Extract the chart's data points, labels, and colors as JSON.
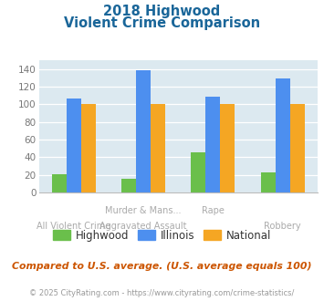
{
  "title_line1": "2018 Highwood",
  "title_line2": "Violent Crime Comparison",
  "series": {
    "Highwood": [
      21,
      16,
      46,
      23
    ],
    "Illinois": [
      107,
      139,
      109,
      129
    ],
    "National": [
      100,
      100,
      100,
      100
    ]
  },
  "colors": {
    "Highwood": "#6abf4b",
    "Illinois": "#4d8fef",
    "National": "#f5a623"
  },
  "ylim": [
    0,
    150
  ],
  "yticks": [
    0,
    20,
    40,
    60,
    80,
    100,
    120,
    140
  ],
  "bg_color": "#dce9f0",
  "footer_text": "Compared to U.S. average. (U.S. average equals 100)",
  "copyright_text": "© 2025 CityRating.com - https://www.cityrating.com/crime-statistics/",
  "title_color": "#1a6699",
  "footer_color": "#cc5500",
  "copyright_color": "#999999",
  "label_color": "#aaaaaa",
  "row1_labels": [
    "",
    "Murder & Mans...",
    "Rape",
    ""
  ],
  "row2_labels": [
    "All Violent Crime",
    "Aggravated Assault",
    "",
    "Robbery"
  ]
}
